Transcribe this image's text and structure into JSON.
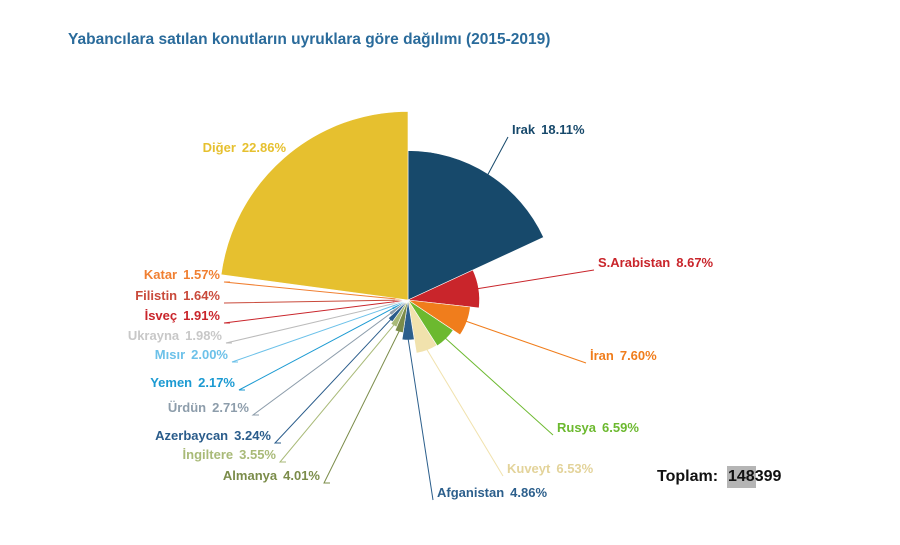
{
  "chart_data": {
    "type": "pie",
    "title": "Yabancılara satılan konutların uyruklara göre dağılımı (2015-2019)",
    "categories": [
      "Irak",
      "S.Arabistan",
      "İran",
      "Rusya",
      "Kuveyt",
      "Afganistan",
      "Almanya",
      "İngiltere",
      "Azerbaycan",
      "Ürdün",
      "Yemen",
      "Mısır",
      "Ukrayna",
      "İsveç",
      "Filistin",
      "Katar",
      "Diğer"
    ],
    "values": [
      18.11,
      8.67,
      7.6,
      6.59,
      6.53,
      4.86,
      4.01,
      3.55,
      3.24,
      2.71,
      2.17,
      2.0,
      1.98,
      1.91,
      1.64,
      1.57,
      22.86
    ],
    "value_labels": [
      "18.11%",
      "8.67%",
      "7.60%",
      "6.59%",
      "6.53%",
      "4.86%",
      "4.01%",
      "3.55%",
      "3.24%",
      "2.71%",
      "2.17%",
      "2.00%",
      "1.98%",
      "1.91%",
      "1.64%",
      "1.57%",
      "22.86%"
    ],
    "colors": [
      "#17496b",
      "#c9252b",
      "#f07d1c",
      "#6cb92f",
      "#f1e2ad",
      "#2c5f8c",
      "#7b8c4a",
      "#a9ba78",
      "#2a5c8b",
      "#8d9dab",
      "#1b9ad2",
      "#6cc1e9",
      "#d9d9d9",
      "#c9252b",
      "#c94a3b",
      "#f07f31",
      "#e6c02f"
    ],
    "total_label": "Toplam:",
    "total": "148399"
  }
}
